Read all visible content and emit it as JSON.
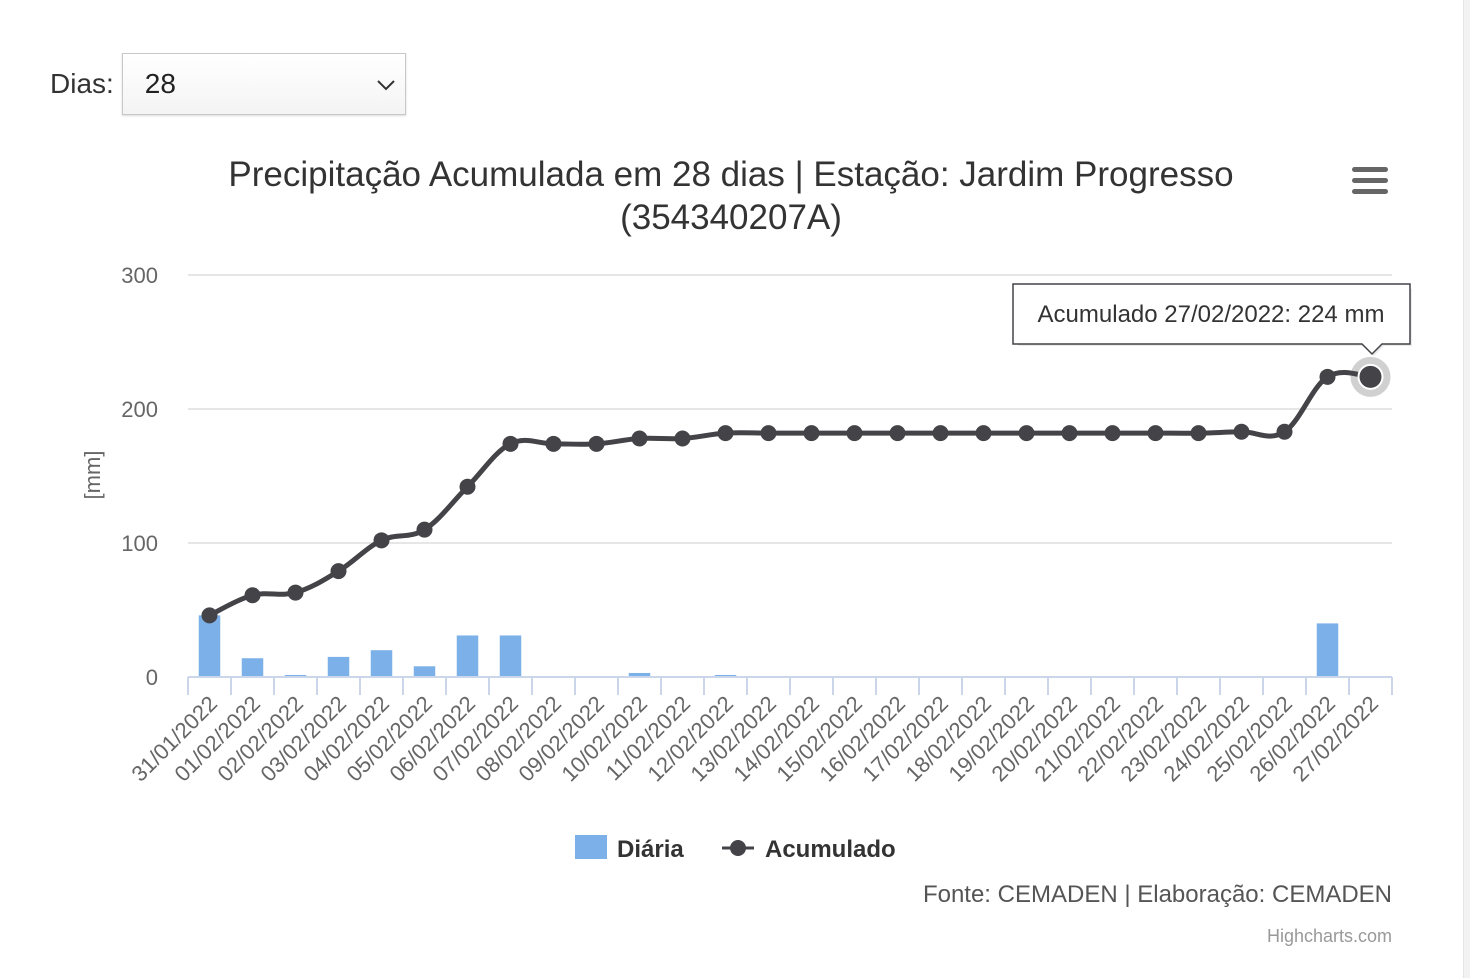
{
  "days_selector": {
    "label": "Dias:",
    "value": "28"
  },
  "chart_data": {
    "type": "bar+line",
    "title": "Precipitação Acumulada em 28 dias | Estação: Jardim Progresso",
    "subtitle": "(354340207A)",
    "ylabel": "[mm]",
    "ylim": [
      0,
      300
    ],
    "yticks": [
      0,
      100,
      200,
      300
    ],
    "grid": true,
    "legend_position": "bottom-center",
    "categories": [
      "31/01/2022",
      "01/02/2022",
      "02/02/2022",
      "03/02/2022",
      "04/02/2022",
      "05/02/2022",
      "06/02/2022",
      "07/02/2022",
      "08/02/2022",
      "09/02/2022",
      "10/02/2022",
      "11/02/2022",
      "12/02/2022",
      "13/02/2022",
      "14/02/2022",
      "15/02/2022",
      "16/02/2022",
      "17/02/2022",
      "18/02/2022",
      "19/02/2022",
      "20/02/2022",
      "21/02/2022",
      "22/02/2022",
      "23/02/2022",
      "24/02/2022",
      "25/02/2022",
      "26/02/2022",
      "27/02/2022"
    ],
    "series": [
      {
        "name": "Diária",
        "type": "bar",
        "color": "#7cb0e8",
        "values": [
          46,
          14,
          1.5,
          15,
          20,
          8,
          31,
          31,
          0,
          0,
          3,
          0.4,
          1.5,
          0,
          0,
          0,
          0,
          0,
          0,
          0,
          0,
          0,
          0,
          0,
          0,
          0,
          40,
          0
        ]
      },
      {
        "name": "Acumulado",
        "type": "line",
        "color": "#434348",
        "values": [
          46,
          61,
          63,
          79,
          102,
          110,
          142,
          174,
          174,
          174,
          178,
          178,
          182,
          182,
          182,
          182,
          182,
          182,
          182,
          182,
          182,
          182,
          182,
          182,
          183,
          183,
          224,
          224
        ]
      }
    ],
    "tooltip": {
      "text": "Acumulado 27/02/2022: 224 mm"
    },
    "credits": "Fonte: CEMADEN | Elaboração: CEMADEN",
    "watermark": "Highcharts.com"
  },
  "icons": {
    "menu": "hamburger-menu-icon",
    "dropdown": "chevron-down-icon"
  }
}
